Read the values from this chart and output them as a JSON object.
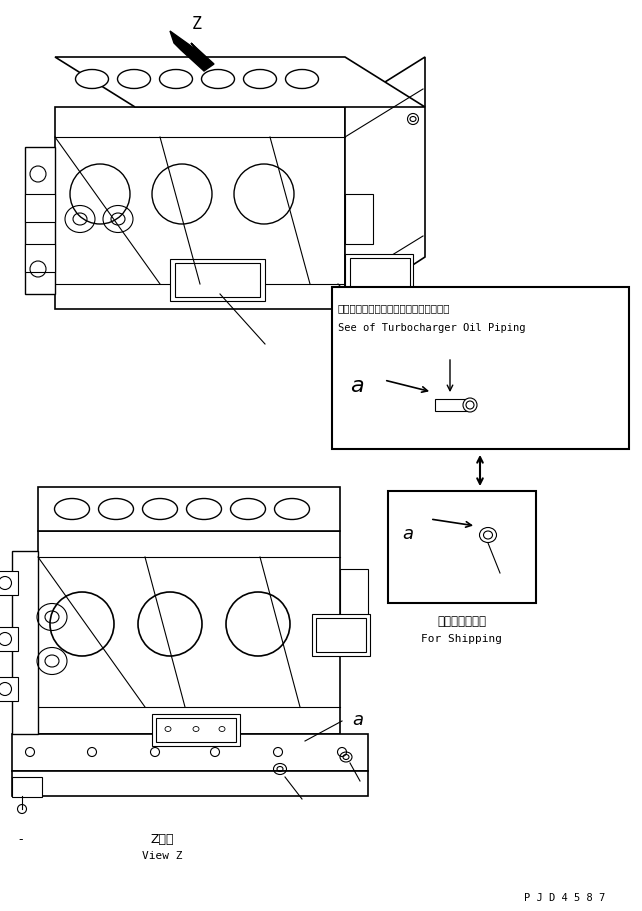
{
  "bg_color": "#ffffff",
  "line_color": "#000000",
  "figure_width": 6.42,
  "figure_height": 9.12,
  "dpi": 100,
  "title_box_text1": "ターボチャージャオイルパイピング参照",
  "title_box_text2": "See of Turbocharger Oil Piping",
  "shipping_jp": "連　携　部　品",
  "shipping_en": "For Shipping",
  "view_label_jp": "Z　視",
  "view_label_en": "View Z",
  "footer_text": "P J D 4 5 8 7",
  "minus_label": "-"
}
